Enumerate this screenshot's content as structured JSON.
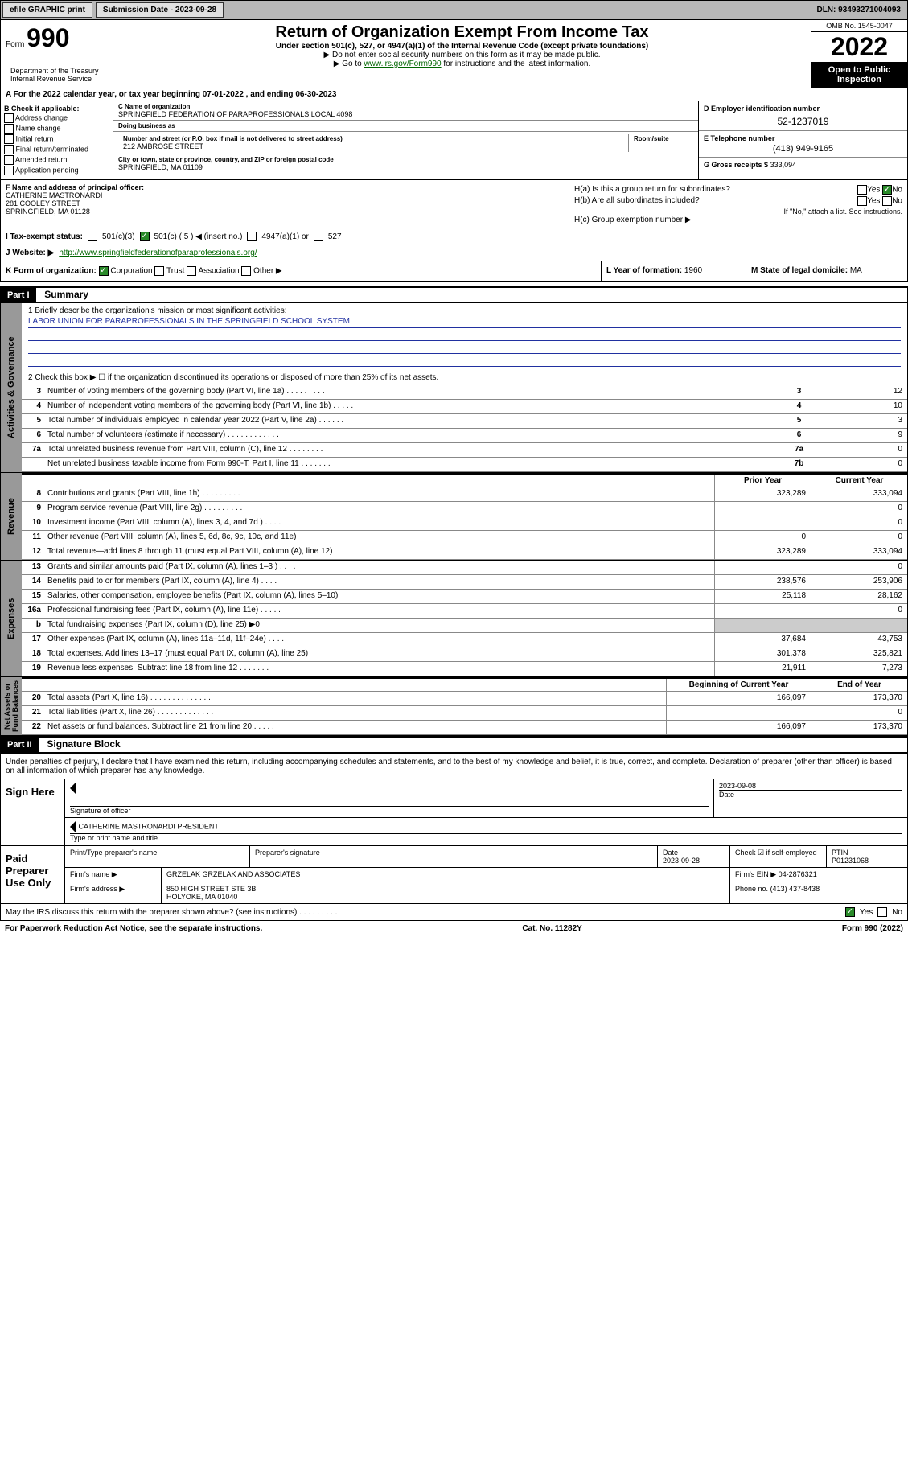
{
  "topbar": {
    "efile": "efile GRAPHIC print",
    "submission_label": "Submission Date - 2023-09-28",
    "dln": "DLN: 93493271004093"
  },
  "header": {
    "form_label": "Form",
    "form_number": "990",
    "title": "Return of Organization Exempt From Income Tax",
    "subtitle": "Under section 501(c), 527, or 4947(a)(1) of the Internal Revenue Code (except private foundations)",
    "note1": "▶ Do not enter social security numbers on this form as it may be made public.",
    "note2_prefix": "▶ Go to ",
    "note2_link": "www.irs.gov/Form990",
    "note2_suffix": " for instructions and the latest information.",
    "dept": "Department of the Treasury\nInternal Revenue Service",
    "omb": "OMB No. 1545-0047",
    "year": "2022",
    "open_public": "Open to Public Inspection"
  },
  "rowA": "A For the 2022 calendar year, or tax year beginning 07-01-2022   , and ending 06-30-2023",
  "colB": {
    "title": "B Check if applicable:",
    "opts": [
      "Address change",
      "Name change",
      "Initial return",
      "Final return/terminated",
      "Amended return",
      "Application pending"
    ]
  },
  "colC": {
    "name_lbl": "C Name of organization",
    "name": "SPRINGFIELD FEDERATION OF PARAPROFESSIONALS LOCAL 4098",
    "dba_lbl": "Doing business as",
    "dba": "",
    "street_lbl": "Number and street (or P.O. box if mail is not delivered to street address)",
    "street": "212 AMBROSE STREET",
    "room_lbl": "Room/suite",
    "room": "",
    "city_lbl": "City or town, state or province, country, and ZIP or foreign postal code",
    "city": "SPRINGFIELD, MA  01109"
  },
  "colDE": {
    "d_lbl": "D Employer identification number",
    "d_val": "52-1237019",
    "e_lbl": "E Telephone number",
    "e_val": "(413) 949-9165",
    "g_lbl": "G Gross receipts $",
    "g_val": "333,094"
  },
  "rowF": {
    "f_lbl": "F Name and address of principal officer:",
    "f_name": "CATHERINE MASTRONARDI",
    "f_addr1": "281 COOLEY STREET",
    "f_addr2": "SPRINGFIELD, MA  01128",
    "ha_lbl": "H(a)  Is this a group return for subordinates?",
    "ha_yes": "Yes",
    "ha_no": "No",
    "hb_lbl": "H(b)  Are all subordinates included?",
    "hb_note": "If \"No,\" attach a list. See instructions.",
    "hc_lbl": "H(c)  Group exemption number ▶"
  },
  "rowI": {
    "lbl": "I   Tax-exempt status:",
    "opts": [
      "501(c)(3)",
      "501(c) ( 5 ) ◀ (insert no.)",
      "4947(a)(1) or",
      "527"
    ],
    "checked_idx": 1
  },
  "rowJ": {
    "lbl": "J   Website: ▶",
    "val": "http://www.springfieldfederationofparaprofessionals.org/"
  },
  "rowK": {
    "lbl": "K Form of organization:",
    "opts": [
      "Corporation",
      "Trust",
      "Association",
      "Other ▶"
    ],
    "checked_idx": 0,
    "l_lbl": "L Year of formation:",
    "l_val": "1960",
    "m_lbl": "M State of legal domicile:",
    "m_val": "MA"
  },
  "partI": {
    "hdr": "Part I",
    "title": "Summary",
    "q1_lbl": "1   Briefly describe the organization's mission or most significant activities:",
    "q1_val": "LABOR UNION FOR PARAPROFESSIONALS IN THE SPRINGFIELD SCHOOL SYSTEM",
    "q2": "2   Check this box ▶ ☐  if the organization discontinued its operations or disposed of more than 25% of its net assets.",
    "governance": [
      {
        "n": "3",
        "t": "Number of voting members of the governing body (Part VI, line 1a)  .  .  .  .  .  .  .  .  .",
        "b": "3",
        "v": "12"
      },
      {
        "n": "4",
        "t": "Number of independent voting members of the governing body (Part VI, line 1b)  .  .  .  .  .",
        "b": "4",
        "v": "10"
      },
      {
        "n": "5",
        "t": "Total number of individuals employed in calendar year 2022 (Part V, line 2a)  .  .  .  .  .  .",
        "b": "5",
        "v": "3"
      },
      {
        "n": "6",
        "t": "Total number of volunteers (estimate if necessary)  .  .  .  .  .  .  .  .  .  .  .  .",
        "b": "6",
        "v": "9"
      },
      {
        "n": "7a",
        "t": "Total unrelated business revenue from Part VIII, column (C), line 12  .  .  .  .  .  .  .  .",
        "b": "7a",
        "v": "0"
      },
      {
        "n": "",
        "t": "Net unrelated business taxable income from Form 990-T, Part I, line 11  .  .  .  .  .  .  .",
        "b": "7b",
        "v": "0"
      }
    ],
    "col_prior": "Prior Year",
    "col_curr": "Current Year",
    "revenue": [
      {
        "n": "8",
        "t": "Contributions and grants (Part VIII, line 1h)  .  .  .  .  .  .  .  .  .",
        "p": "323,289",
        "c": "333,094"
      },
      {
        "n": "9",
        "t": "Program service revenue (Part VIII, line 2g)  .  .  .  .  .  .  .  .  .",
        "p": "",
        "c": "0"
      },
      {
        "n": "10",
        "t": "Investment income (Part VIII, column (A), lines 3, 4, and 7d )  .  .  .  .",
        "p": "",
        "c": "0"
      },
      {
        "n": "11",
        "t": "Other revenue (Part VIII, column (A), lines 5, 6d, 8c, 9c, 10c, and 11e)",
        "p": "0",
        "c": "0"
      },
      {
        "n": "12",
        "t": "Total revenue—add lines 8 through 11 (must equal Part VIII, column (A), line 12)",
        "p": "323,289",
        "c": "333,094"
      }
    ],
    "expenses": [
      {
        "n": "13",
        "t": "Grants and similar amounts paid (Part IX, column (A), lines 1–3 )  .  .  .  .",
        "p": "",
        "c": "0"
      },
      {
        "n": "14",
        "t": "Benefits paid to or for members (Part IX, column (A), line 4)  .  .  .  .",
        "p": "238,576",
        "c": "253,906"
      },
      {
        "n": "15",
        "t": "Salaries, other compensation, employee benefits (Part IX, column (A), lines 5–10)",
        "p": "25,118",
        "c": "28,162"
      },
      {
        "n": "16a",
        "t": "Professional fundraising fees (Part IX, column (A), line 11e)  .  .  .  .  .",
        "p": "",
        "c": "0"
      },
      {
        "n": "b",
        "t": "Total fundraising expenses (Part IX, column (D), line 25) ▶0",
        "p": "—",
        "c": "—"
      },
      {
        "n": "17",
        "t": "Other expenses (Part IX, column (A), lines 11a–11d, 11f–24e)  .  .  .  .",
        "p": "37,684",
        "c": "43,753"
      },
      {
        "n": "18",
        "t": "Total expenses. Add lines 13–17 (must equal Part IX, column (A), line 25)",
        "p": "301,378",
        "c": "325,821"
      },
      {
        "n": "19",
        "t": "Revenue less expenses. Subtract line 18 from line 12  .  .  .  .  .  .  .",
        "p": "21,911",
        "c": "7,273"
      }
    ],
    "col_beg": "Beginning of Current Year",
    "col_end": "End of Year",
    "netassets": [
      {
        "n": "20",
        "t": "Total assets (Part X, line 16)  .  .  .  .  .  .  .  .  .  .  .  .  .  .",
        "p": "166,097",
        "c": "173,370"
      },
      {
        "n": "21",
        "t": "Total liabilities (Part X, line 26)  .  .  .  .  .  .  .  .  .  .  .  .  .",
        "p": "",
        "c": "0"
      },
      {
        "n": "22",
        "t": "Net assets or fund balances. Subtract line 21 from line 20  .  .  .  .  .",
        "p": "166,097",
        "c": "173,370"
      }
    ],
    "tab_gov": "Activities & Governance",
    "tab_rev": "Revenue",
    "tab_exp": "Expenses",
    "tab_net": "Net Assets or\nFund Balances"
  },
  "partII": {
    "hdr": "Part II",
    "title": "Signature Block",
    "intro": "Under penalties of perjury, I declare that I have examined this return, including accompanying schedules and statements, and to the best of my knowledge and belief, it is true, correct, and complete. Declaration of preparer (other than officer) is based on all information of which preparer has any knowledge.",
    "sign_here": "Sign Here",
    "sig_date": "2023-09-08",
    "sig_officer_lbl": "Signature of officer",
    "sig_date_lbl": "Date",
    "sig_name": "CATHERINE MASTRONARDI PRESIDENT",
    "sig_name_lbl": "Type or print name and title",
    "paid": "Paid Preparer Use Only",
    "prep_name_lbl": "Print/Type preparer's name",
    "prep_sig_lbl": "Preparer's signature",
    "prep_date_lbl": "Date",
    "prep_date": "2023-09-28",
    "prep_self_lbl": "Check ☑ if self-employed",
    "ptin_lbl": "PTIN",
    "ptin": "P01231068",
    "firm_name_lbl": "Firm's name   ▶",
    "firm_name": "GRZELAK GRZELAK AND ASSOCIATES",
    "firm_ein_lbl": "Firm's EIN ▶",
    "firm_ein": "04-2876321",
    "firm_addr_lbl": "Firm's address ▶",
    "firm_addr": "850 HIGH STREET STE 3B\nHOLYOKE, MA  01040",
    "firm_phone_lbl": "Phone no.",
    "firm_phone": "(413) 437-8438",
    "discuss": "May the IRS discuss this return with the preparer shown above? (see instructions)  .  .  .  .  .  .  .  .  .",
    "discuss_yes": "Yes",
    "discuss_no": "No"
  },
  "footer": {
    "pra": "For Paperwork Reduction Act Notice, see the separate instructions.",
    "cat": "Cat. No. 11282Y",
    "form": "Form 990 (2022)"
  }
}
